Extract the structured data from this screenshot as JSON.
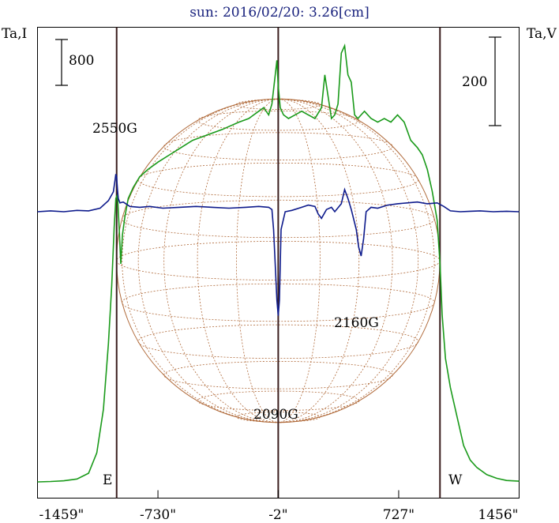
{
  "chart_data": {
    "type": "line",
    "title": "sun: 2016/02/20: 3.26[cm]",
    "left_axis_label": "Ta,I",
    "right_axis_label": "Ta,V",
    "left_scale_bar_label": "800",
    "right_scale_bar_label": "200",
    "x_tick_labels": [
      "-1459\"",
      "-730\"",
      "-2\"",
      "727\"",
      "1456\""
    ],
    "x_ticks": [
      -1459,
      -730,
      -2,
      727,
      1456
    ],
    "x_range": [
      -1459,
      1456
    ],
    "limb_labels": {
      "east": "E",
      "west": "W"
    },
    "limb_x": [
      -980,
      977
    ],
    "center_x": -2,
    "annotations": [
      {
        "text": "2550G",
        "x": -980
      },
      {
        "text": "2090G",
        "x": -2
      },
      {
        "text": "2160G",
        "x": 500
      }
    ],
    "colors": {
      "intensity": "#1a9a1a",
      "polarization": "#0d1a8c",
      "grid": "#b06a3a",
      "vertical_lines": "#3a1e1e",
      "title": "#1a237e"
    },
    "series": [
      {
        "name": "Ta,I",
        "x": [
          -1459,
          -1380,
          -1300,
          -1220,
          -1150,
          -1100,
          -1060,
          -1030,
          -1010,
          -995,
          -985,
          -975,
          -965,
          -955,
          -945,
          -930,
          -910,
          -880,
          -840,
          -790,
          -730,
          -660,
          -590,
          -520,
          -460,
          -400,
          -340,
          -290,
          -240,
          -180,
          -150,
          -120,
          -90,
          -60,
          -40,
          -20,
          -10,
          -2,
          10,
          30,
          60,
          100,
          140,
          180,
          220,
          260,
          280,
          300,
          320,
          340,
          360,
          380,
          400,
          420,
          440,
          460,
          480,
          500,
          520,
          560,
          600,
          640,
          680,
          720,
          760,
          800,
          840,
          870,
          900,
          930,
          960,
          977,
          990,
          1010,
          1040,
          1080,
          1120,
          1160,
          1200,
          1260,
          1320,
          1380,
          1456
        ],
        "values": [
          0,
          5,
          15,
          40,
          120,
          400,
          1000,
          1900,
          2700,
          3500,
          3900,
          3950,
          3500,
          3000,
          3400,
          3650,
          3900,
          4050,
          4200,
          4300,
          4400,
          4500,
          4600,
          4700,
          4750,
          4800,
          4850,
          4900,
          4950,
          5000,
          5050,
          5100,
          5150,
          5050,
          5200,
          5600,
          5800,
          5450,
          5150,
          5050,
          5000,
          5050,
          5100,
          5050,
          5000,
          5150,
          5600,
          5300,
          5000,
          5050,
          5200,
          5900,
          6000,
          5600,
          5500,
          5050,
          5000,
          5050,
          5100,
          5000,
          4950,
          5000,
          4950,
          5050,
          4950,
          4700,
          4600,
          4500,
          4300,
          4000,
          3600,
          3000,
          2300,
          1700,
          1300,
          900,
          500,
          300,
          200,
          100,
          50,
          20,
          10
        ]
      },
      {
        "name": "Ta,V",
        "x": [
          -1459,
          -1380,
          -1300,
          -1220,
          -1150,
          -1080,
          -1030,
          -1000,
          -990,
          -985,
          -980,
          -975,
          -970,
          -960,
          -940,
          -900,
          -840,
          -780,
          -700,
          -600,
          -500,
          -400,
          -300,
          -200,
          -120,
          -60,
          -40,
          -30,
          -20,
          -10,
          -2,
          5,
          15,
          40,
          80,
          140,
          180,
          220,
          240,
          260,
          290,
          320,
          340,
          380,
          400,
          420,
          440,
          450,
          470,
          485,
          500,
          515,
          530,
          560,
          600,
          660,
          720,
          780,
          840,
          900,
          960,
          1000,
          1040,
          1100,
          1160,
          1220,
          1300,
          1380,
          1456
        ],
        "values": [
          0,
          2,
          0,
          3,
          2,
          8,
          25,
          45,
          70,
          85,
          78,
          50,
          30,
          20,
          22,
          12,
          10,
          12,
          8,
          10,
          12,
          10,
          8,
          10,
          12,
          10,
          5,
          -40,
          -120,
          -200,
          -235,
          -200,
          -40,
          0,
          3,
          10,
          15,
          12,
          -5,
          -15,
          5,
          10,
          0,
          18,
          50,
          30,
          5,
          -10,
          -40,
          -80,
          -100,
          -60,
          0,
          10,
          8,
          15,
          18,
          20,
          22,
          18,
          20,
          12,
          2,
          0,
          1,
          2,
          0,
          1,
          0
        ]
      }
    ]
  }
}
